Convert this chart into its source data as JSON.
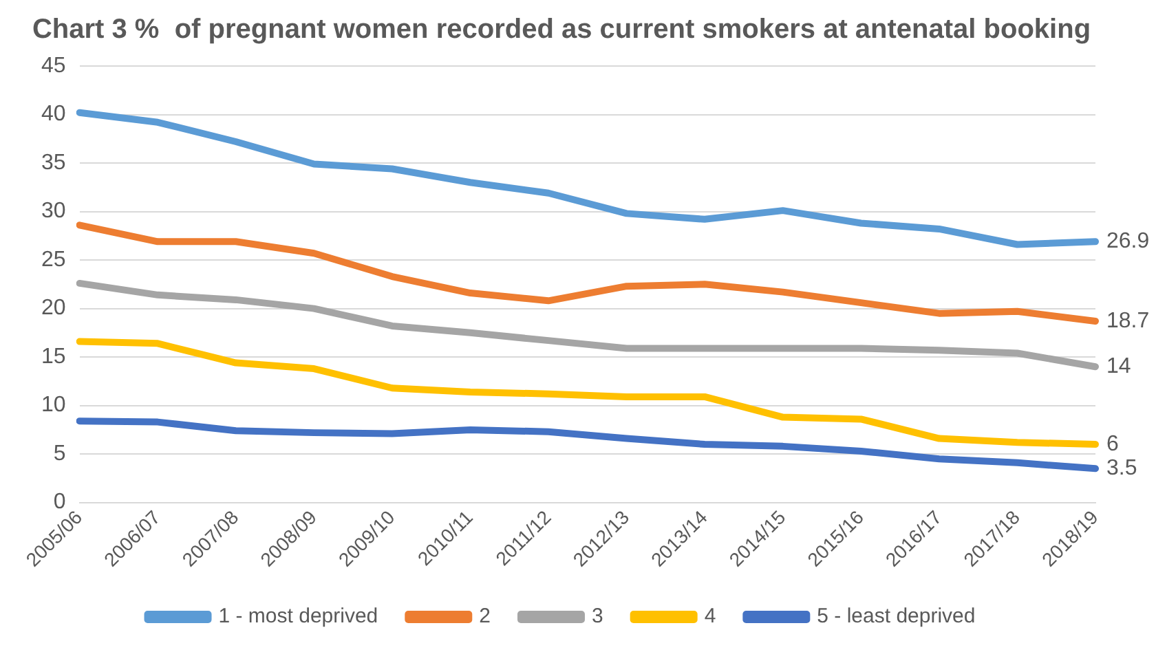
{
  "chart_data": {
    "type": "line",
    "title": "Chart 3 %  of pregnant women recorded as current smokers at antenatal booking",
    "categories": [
      "2005/06",
      "2006/07",
      "2007/08",
      "2008/09",
      "2009/10",
      "2010/11",
      "2011/12",
      "2012/13",
      "2013/14",
      "2014/15",
      "2015/16",
      "2016/17",
      "2017/18",
      "2018/19"
    ],
    "series": [
      {
        "name": "1 - most deprived",
        "color": "#5b9bd5",
        "values": [
          40.2,
          39.2,
          37.2,
          34.9,
          34.4,
          33,
          31.9,
          29.8,
          29.2,
          30.1,
          28.8,
          28.2,
          26.6,
          26.9
        ],
        "value_labels": [
          null,
          null,
          null,
          null,
          null,
          null,
          null,
          null,
          null,
          null,
          null,
          null,
          null,
          "26.9"
        ]
      },
      {
        "name": "2",
        "color": "#ed7d31",
        "values": [
          28.6,
          26.9,
          26.9,
          25.7,
          23.3,
          21.6,
          20.8,
          22.3,
          22.5,
          21.7,
          20.6,
          19.5,
          19.7,
          18.7
        ],
        "value_labels": [
          null,
          null,
          null,
          null,
          null,
          null,
          null,
          null,
          null,
          null,
          null,
          null,
          null,
          "18.7"
        ]
      },
      {
        "name": "3",
        "color": "#a5a5a5",
        "values": [
          22.6,
          21.4,
          20.9,
          20,
          18.2,
          17.5,
          16.7,
          15.9,
          15.9,
          15.9,
          15.9,
          15.7,
          15.4,
          14
        ],
        "value_labels": [
          null,
          null,
          null,
          null,
          null,
          null,
          null,
          null,
          null,
          null,
          null,
          null,
          null,
          "14"
        ]
      },
      {
        "name": "4",
        "color": "#ffc000",
        "values": [
          16.6,
          16.4,
          14.4,
          13.8,
          11.8,
          11.4,
          11.2,
          10.9,
          10.9,
          8.8,
          8.6,
          6.6,
          6.2,
          6
        ],
        "value_labels": [
          null,
          null,
          null,
          null,
          null,
          null,
          null,
          null,
          null,
          null,
          null,
          null,
          null,
          "6"
        ]
      },
      {
        "name": "5 - least deprived",
        "color": "#4472c4",
        "values": [
          8.4,
          8.3,
          7.4,
          7.2,
          7.1,
          7.5,
          7.3,
          6.6,
          6.0,
          5.8,
          5.3,
          4.5,
          4.1,
          3.5
        ],
        "value_labels": [
          null,
          null,
          null,
          null,
          null,
          null,
          null,
          null,
          null,
          null,
          null,
          null,
          null,
          "3.5"
        ]
      }
    ],
    "ylim": [
      0,
      45
    ],
    "yticks": [
      0,
      5,
      10,
      15,
      20,
      25,
      30,
      35,
      40,
      45
    ],
    "grid": "y",
    "legend": "bottom",
    "marker": "none",
    "line_style": "solid"
  }
}
